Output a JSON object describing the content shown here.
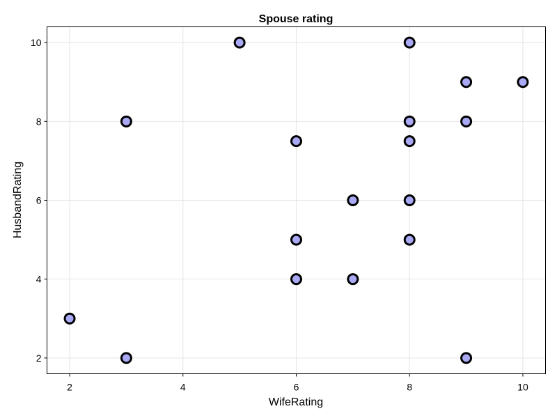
{
  "chart_data": {
    "type": "scatter",
    "title": "Spouse rating",
    "xlabel": "WifeRating",
    "ylabel": "HusbandRating",
    "xlim": [
      1.6,
      10.4
    ],
    "ylim": [
      1.6,
      10.4
    ],
    "xticks": [
      2,
      4,
      6,
      8,
      10
    ],
    "yticks": [
      2,
      4,
      6,
      8,
      10
    ],
    "grid": true,
    "marker_fill": "#a9a9f5",
    "marker_edge": "#000000",
    "series": [
      {
        "points": [
          [
            5,
            10
          ],
          [
            8,
            10
          ],
          [
            9,
            9
          ],
          [
            10,
            9
          ],
          [
            3,
            8
          ],
          [
            8,
            8
          ],
          [
            9,
            8
          ],
          [
            6,
            7.5
          ],
          [
            8,
            7.5
          ],
          [
            7,
            6
          ],
          [
            8,
            6
          ],
          [
            6,
            5
          ],
          [
            8,
            5
          ],
          [
            6,
            4
          ],
          [
            7,
            4
          ],
          [
            2,
            3
          ],
          [
            3,
            2
          ],
          [
            9,
            2
          ]
        ]
      }
    ]
  }
}
